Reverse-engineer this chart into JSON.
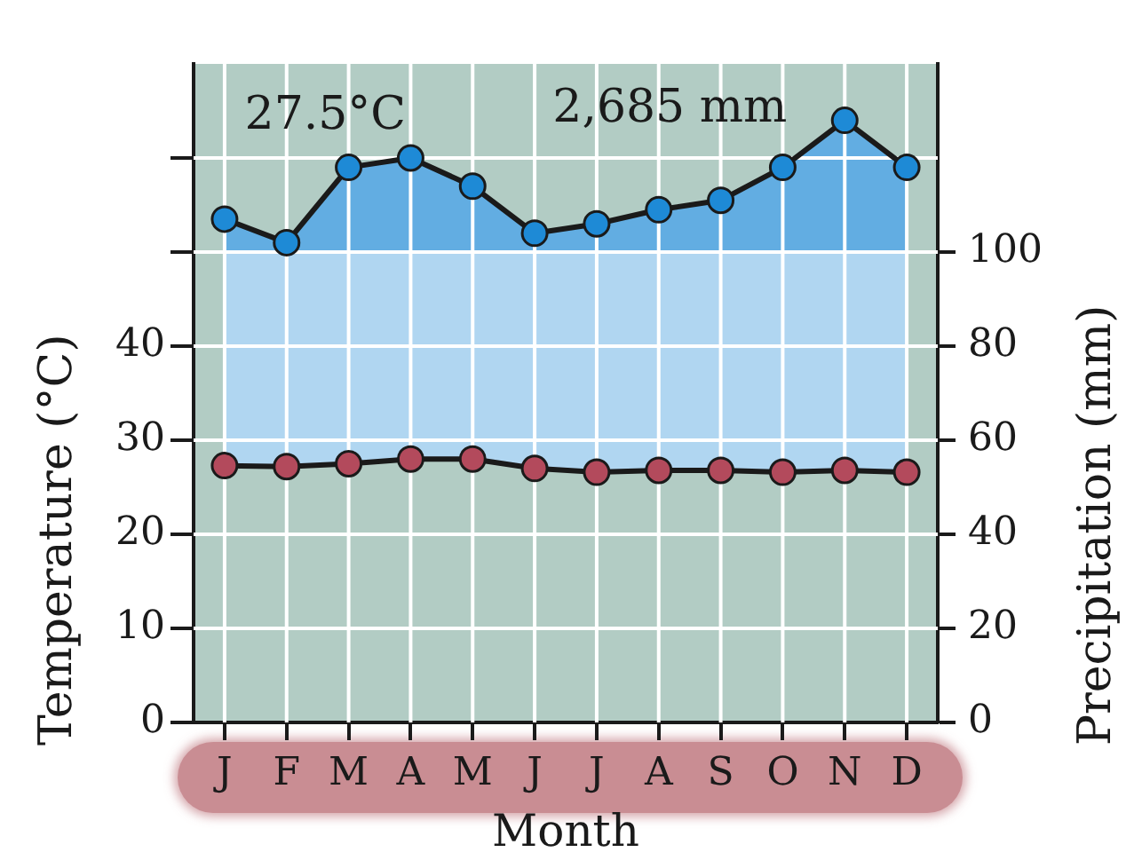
{
  "chart_data": {
    "type": "line",
    "categories": [
      "J",
      "F",
      "M",
      "A",
      "M",
      "J",
      "J",
      "A",
      "S",
      "O",
      "N",
      "D"
    ],
    "xlabel": "Month",
    "ylabel": "Temperature (°C)",
    "y2label": "Precipitation (mm)",
    "ylim": [
      0,
      70
    ],
    "yticks": [
      0,
      10,
      20,
      30,
      40,
      {
        "value": 50,
        "label": null
      },
      {
        "value": 60,
        "label": null
      }
    ],
    "y2lim": [
      0,
      140
    ],
    "y2ticks": [
      0,
      20,
      40,
      60,
      80,
      100
    ],
    "grid": true,
    "marker": "circle",
    "line_style": "solid",
    "annotations": [
      "27.5°C",
      "2,685 mm"
    ],
    "series": [
      {
        "type": "line",
        "color": "#b34a5c",
        "values": [
          27.3,
          27.2,
          27.5,
          28,
          28,
          27,
          26.6,
          26.8,
          26.8,
          26.6,
          26.8,
          26.6
        ]
      },
      {
        "type": "area",
        "axis": "y2",
        "color": "#1e8ad6",
        "values": [
          107,
          102,
          118,
          120,
          114,
          104,
          106,
          109,
          111,
          118,
          128,
          118
        ]
      }
    ]
  }
}
